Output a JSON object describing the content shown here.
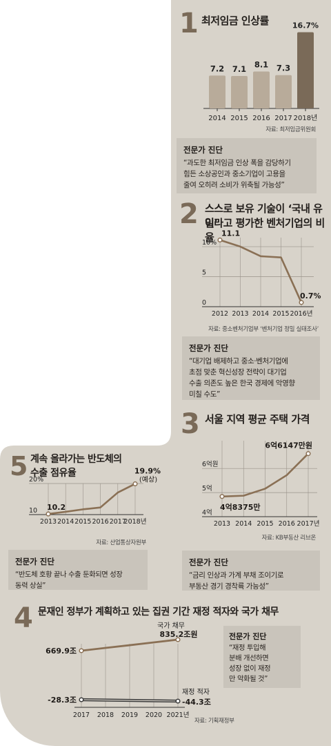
{
  "panels": {
    "p1": {
      "number": "1",
      "title": "최저임금 인상률",
      "source": "자료: 최저임금위원회",
      "expert_title": "전문가 진단",
      "expert_text": "“과도한 최저임금 인상 폭을 감당하기\n힘든 소상공인과 중소기업이 고용을\n줄여 오히려 소비가 위축될 가능성”"
    },
    "p2": {
      "number": "2",
      "title_line1": "스스로 보유 기술이 ‘국내 유일’",
      "title_line2": "이라고 평가한 벤처기업의 비율",
      "source": "자료: 중소벤처기업부 ‘벤처기업 정밀 실태조사’",
      "expert_title": "전문가 진단",
      "expert_text": "“대기업 배제하고 중소·벤처기업에\n초점 맞춘 혁신성장 전략이 대기업\n수출 의존도 높은 한국 경제에 악영향\n미칠 수도”"
    },
    "p3": {
      "number": "3",
      "title": "서울 지역 평균 주택 가격",
      "source": "자료: KB부동산 리브온",
      "expert_title": "전문가 진단",
      "expert_text": "“금리 인상과 가계 부채 조이기로\n부동산 경기 경착륙 가능성”"
    },
    "p4": {
      "number": "4",
      "title": "문재인 정부가 계획하고 있는 집권 기간 재정 적자와 국가 채무",
      "source": "자료: 기획재정부",
      "expert_title": "전문가 진단",
      "expert_text": "“재정 투입해\n분배 개선하면\n성장 없이 재정\n만 악화될 것”"
    },
    "p5": {
      "number": "5",
      "title_line1": "계속 올라가는 반도체의",
      "title_line2": "수출 점유율",
      "source": "자료: 산업통상자원부",
      "expert_title": "전문가 진단",
      "expert_text": "“반도체 호황 끝나 수출 둔화되면 성장\n동력 상실”"
    }
  },
  "colors": {
    "background": "#d8d3ca",
    "bar": "#b8ab9a",
    "bar_highlight": "#7a6a58",
    "line": "#8a7055",
    "expert_box": "#c9c4bb",
    "number": "#7a6a58"
  },
  "chart_data": [
    {
      "id": "min_wage",
      "type": "bar",
      "title": "최저임금 인상률",
      "categories": [
        "2014",
        "2015",
        "2016",
        "2017",
        "2018년"
      ],
      "values": [
        7.2,
        7.1,
        8.1,
        7.3,
        16.7
      ],
      "labels": [
        "7.2",
        "7.1",
        "8.1",
        "7.3",
        "16.7%"
      ],
      "ylim": [
        0,
        18
      ],
      "highlight_index": 4
    },
    {
      "id": "venture_unique_tech",
      "type": "line",
      "title": "스스로 보유 기술이 ‘국내 유일’이라고 평가한 벤처기업의 비율",
      "x": [
        "2012",
        "2013",
        "2014",
        "2015",
        "2016년"
      ],
      "y": [
        11.1,
        10.0,
        8.4,
        8.2,
        0.7
      ],
      "point_labels": {
        "0": "11.1",
        "4": "0.7%"
      },
      "yticks": [
        "0",
        "5",
        "10%"
      ],
      "ytick_values": [
        0,
        5,
        10
      ],
      "ylim": [
        0,
        11.5
      ]
    },
    {
      "id": "seoul_house_price",
      "type": "line",
      "title": "서울 지역 평균 주택 가격",
      "x": [
        "2013",
        "2014",
        "2015",
        "2016",
        "2017년"
      ],
      "y": [
        4.8375,
        4.87,
        5.16,
        5.72,
        6.6147
      ],
      "point_labels": {
        "0": "4억8375만",
        "4": "6억6147만원"
      },
      "yticks": [
        "4억",
        "5억",
        "6억원"
      ],
      "ytick_values": [
        4,
        5,
        6
      ],
      "ylim": [
        4,
        6.75
      ]
    },
    {
      "id": "debt_deficit",
      "type": "line",
      "title": "문재인 정부가 계획하고 있는 집권 기간 재정 적자와 국가 채무",
      "x": [
        "2017",
        "2018",
        "2019",
        "2020",
        "2021년"
      ],
      "series": [
        {
          "name": "국가 채무",
          "values": [
            669.9,
            711.0,
            752.0,
            794.0,
            835.2
          ],
          "end_labels": [
            "669.9조",
            "835.2조원"
          ]
        },
        {
          "name": "재정 적자",
          "values": [
            -28.3,
            -32.3,
            -36.3,
            -40.3,
            -44.3
          ],
          "end_labels": [
            "-28.3조",
            "-44.3조"
          ]
        }
      ]
    },
    {
      "id": "semiconductor_share",
      "type": "line",
      "title": "계속 올라가는 반도체의 수출 점유율",
      "x": [
        "2013",
        "2014",
        "2015",
        "2016",
        "2017",
        "2018년"
      ],
      "y": [
        10.2,
        10.9,
        11.7,
        12.3,
        17.1,
        19.9
      ],
      "point_labels": {
        "0": "10.2",
        "5": "19.9%"
      },
      "projected_label": "(예상)",
      "yticks": [
        "10",
        "20%"
      ],
      "ytick_values": [
        10,
        20
      ],
      "ylim": [
        10,
        20
      ]
    }
  ]
}
